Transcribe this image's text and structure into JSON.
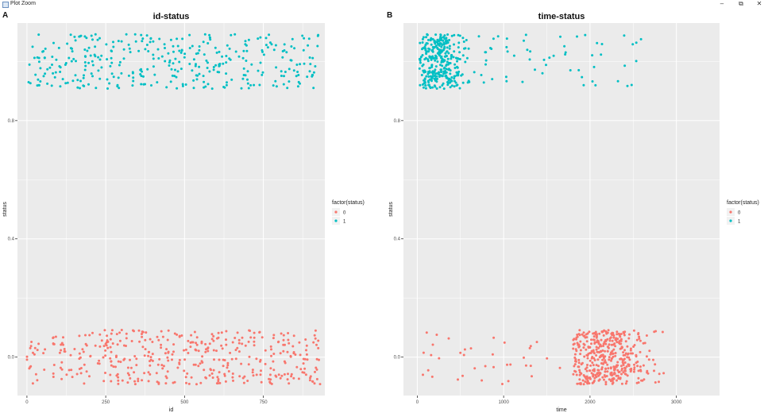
{
  "window": {
    "title": "Plot Zoom",
    "controls": {
      "minimize": "–",
      "restore": "⧉",
      "close": "✕"
    }
  },
  "colors": {
    "status_0": "#F8766D",
    "status_1": "#00BFC4",
    "panel_bg": "#EBEBEB",
    "grid": "#FFFFFF"
  },
  "chart_data": [
    {
      "panel_label": "A",
      "type": "scatter",
      "title": "id-status",
      "xlabel": "id",
      "ylabel": "status",
      "xlim": [
        -30,
        945
      ],
      "ylim": [
        -0.13,
        1.13
      ],
      "x_ticks": [
        0,
        250,
        500,
        750
      ],
      "x_tick_labels": [
        "0",
        "250",
        "500",
        "750"
      ],
      "y_ticks": [
        0.0,
        0.4,
        0.8
      ],
      "y_tick_labels": [
        "0.0",
        "0.4",
        "0.8"
      ],
      "legend": {
        "title": "factor(status)",
        "entries": [
          "0",
          "1"
        ],
        "placement": "right"
      },
      "series": [
        {
          "name": "0",
          "x_range": [
            0,
            930
          ],
          "y_center": 0.0,
          "jitter": 0.1,
          "count": 430,
          "x_distribution": "uniform"
        },
        {
          "name": "1",
          "x_range": [
            0,
            930
          ],
          "y_center": 1.0,
          "jitter": 0.1,
          "count": 360,
          "x_distribution": "uniform"
        }
      ]
    },
    {
      "panel_label": "B",
      "type": "scatter",
      "title": "time-status",
      "xlabel": "time",
      "ylabel": "status",
      "xlim": [
        -160,
        3500
      ],
      "ylim": [
        -0.13,
        1.13
      ],
      "x_ticks": [
        0,
        1000,
        2000,
        3000
      ],
      "x_tick_labels": [
        "0",
        "1000",
        "2000",
        "3000"
      ],
      "y_ticks": [
        0.0,
        0.4,
        0.8
      ],
      "y_tick_labels": [
        "0.0",
        "0.4",
        "0.8"
      ],
      "legend": {
        "title": "factor(status)",
        "entries": [
          "0",
          "1"
        ],
        "placement": "right"
      },
      "series": [
        {
          "name": "0",
          "y_center": 0.0,
          "jitter": 0.1,
          "count": 470,
          "x_distribution": "concentrated 1800–3300, peak near 2200, sparse 50–1700"
        },
        {
          "name": "1",
          "y_center": 1.0,
          "jitter": 0.1,
          "count": 380,
          "x_distribution": "concentrated 50–800, peak near 250, sparse to 2700"
        }
      ]
    }
  ]
}
